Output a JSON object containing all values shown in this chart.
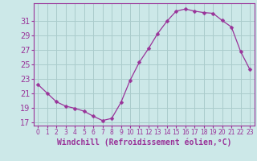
{
  "x": [
    0,
    1,
    2,
    3,
    4,
    5,
    6,
    7,
    8,
    9,
    10,
    11,
    12,
    13,
    14,
    15,
    16,
    17,
    18,
    19,
    20,
    21,
    22,
    23
  ],
  "y": [
    22.2,
    21.0,
    19.8,
    19.2,
    18.9,
    18.5,
    17.8,
    17.2,
    17.5,
    19.7,
    22.8,
    25.3,
    27.2,
    29.3,
    31.0,
    32.4,
    32.7,
    32.4,
    32.2,
    32.1,
    31.1,
    30.2,
    26.8,
    24.3
  ],
  "line_color": "#993399",
  "marker": "D",
  "marker_size": 2.5,
  "bg_color": "#cce8e8",
  "grid_color": "#aacccc",
  "xlabel": "Windchill (Refroidissement éolien,°C)",
  "xlabel_fontsize": 7,
  "yticks": [
    17,
    19,
    21,
    23,
    25,
    27,
    29,
    31
  ],
  "ylim": [
    16.5,
    33.5
  ],
  "xlim": [
    -0.5,
    23.5
  ],
  "ytick_fontsize": 7,
  "xtick_fontsize": 5.5,
  "spine_color": "#993399"
}
